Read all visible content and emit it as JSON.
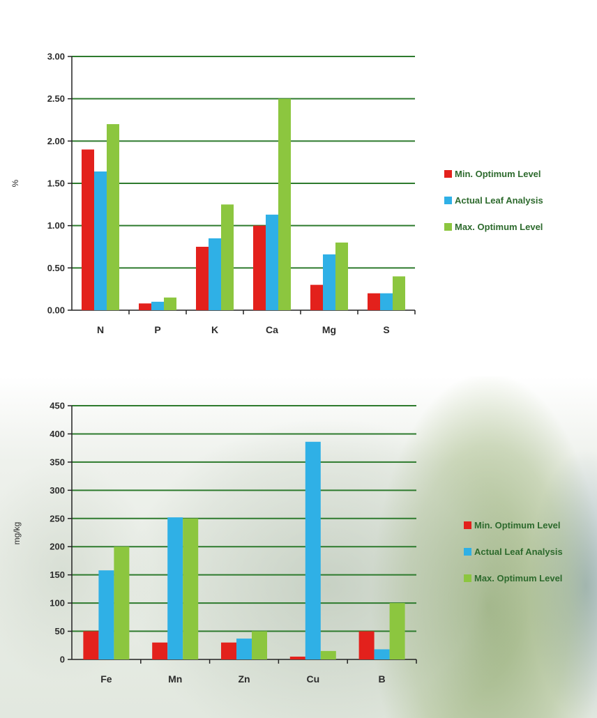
{
  "colors": {
    "min": "#e3211c",
    "actual": "#2fb0e6",
    "max": "#8cc63f",
    "grid": "#2d7a2d",
    "axis": "#222222"
  },
  "chart_data": [
    {
      "type": "bar",
      "categories": [
        "N",
        "P",
        "K",
        "Ca",
        "Mg",
        "S"
      ],
      "ylabel": "%",
      "ylim": [
        0,
        3
      ],
      "yticks": [
        "0.00",
        "0.50",
        "1.00",
        "1.50",
        "2.00",
        "2.50",
        "3.00"
      ],
      "grid": true,
      "legend_position": "right",
      "series": [
        {
          "name": "Min. Optimum Level",
          "values": [
            1.9,
            0.08,
            0.75,
            1.0,
            0.3,
            0.2
          ]
        },
        {
          "name": "Actual Leaf Analysis",
          "values": [
            1.64,
            0.1,
            0.85,
            1.13,
            0.66,
            0.2
          ]
        },
        {
          "name": "Max. Optimum Level",
          "values": [
            2.2,
            0.15,
            1.25,
            2.5,
            0.8,
            0.4
          ]
        }
      ]
    },
    {
      "type": "bar",
      "categories": [
        "Fe",
        "Mn",
        "Zn",
        "Cu",
        "B"
      ],
      "ylabel": "mg/kg",
      "ylim": [
        0,
        450
      ],
      "yticks": [
        "0",
        "50",
        "100",
        "150",
        "200",
        "250",
        "300",
        "350",
        "400",
        "450"
      ],
      "grid": true,
      "legend_position": "right",
      "series": [
        {
          "name": "Min. Optimum Level",
          "values": [
            50,
            30,
            30,
            5,
            50
          ]
        },
        {
          "name": "Actual Leaf Analysis",
          "values": [
            158,
            252,
            37,
            386,
            18
          ]
        },
        {
          "name": "Max. Optimum Level",
          "values": [
            200,
            250,
            50,
            15,
            100
          ]
        }
      ]
    }
  ]
}
